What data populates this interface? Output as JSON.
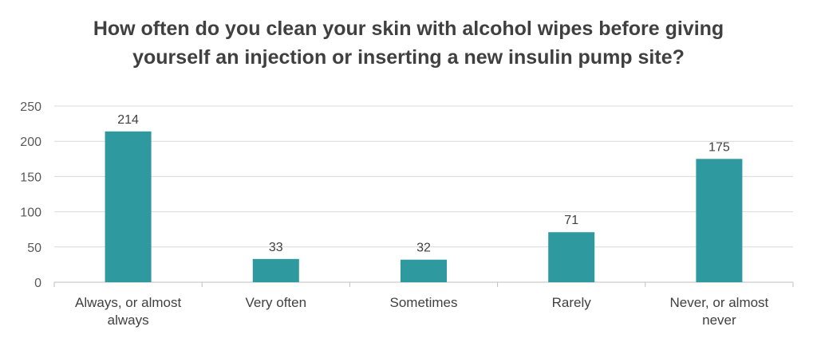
{
  "title_lines": [
    "How often do you clean your skin with alcohol wipes before giving",
    "yourself an injection or inserting a new insulin pump site?"
  ],
  "chart_data": {
    "type": "bar",
    "title": "How often do you clean your skin with alcohol wipes before giving yourself an injection or inserting a new insulin pump site?",
    "categories": [
      [
        "Always, or almost",
        "always"
      ],
      [
        "Very often"
      ],
      [
        "Sometimes"
      ],
      [
        "Rarely"
      ],
      [
        "Never, or almost",
        "never"
      ]
    ],
    "values": [
      214,
      33,
      32,
      71,
      175
    ],
    "data_labels": [
      "214",
      "33",
      "32",
      "71",
      "175"
    ],
    "ylim": [
      0,
      250
    ],
    "yticks": [
      0,
      50,
      100,
      150,
      200,
      250
    ],
    "grid": true,
    "legend": "none",
    "bar_color": "#2e9aa0",
    "xlabel": "",
    "ylabel": ""
  }
}
